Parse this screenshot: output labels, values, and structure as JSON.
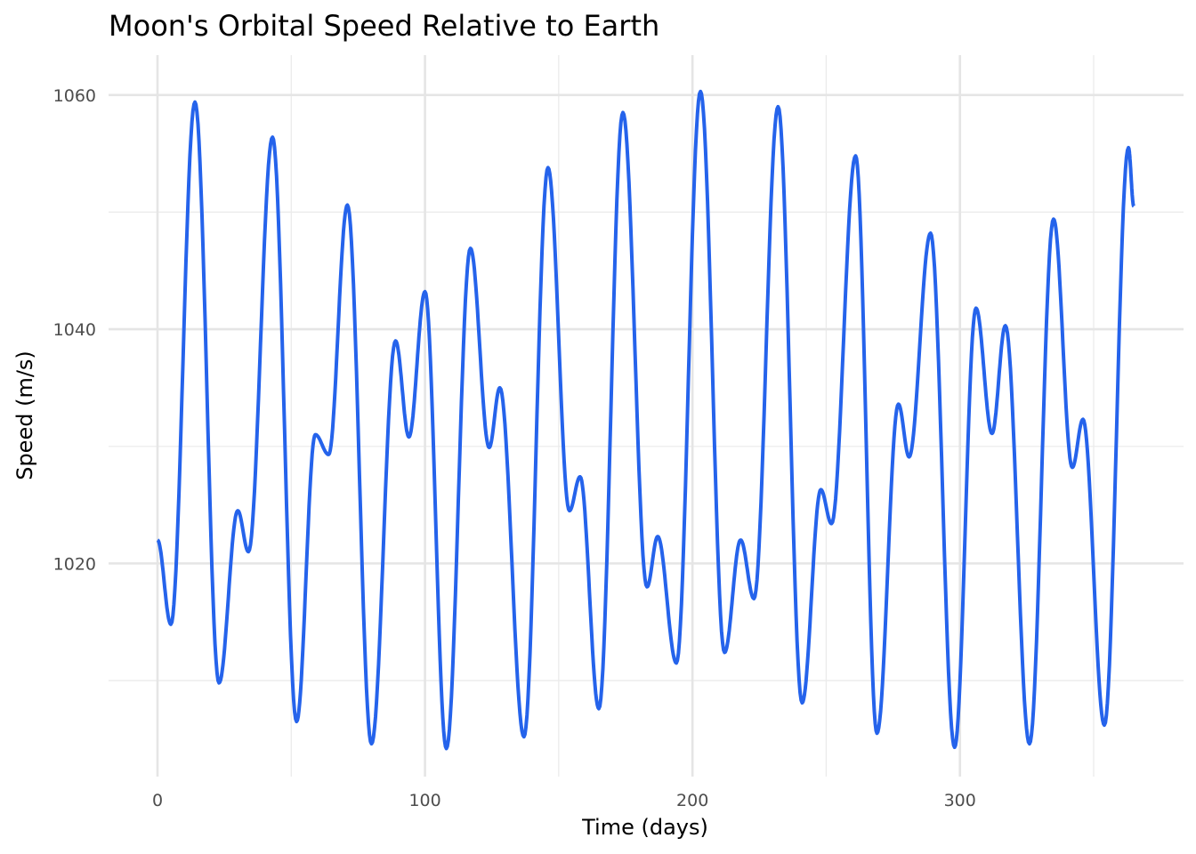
{
  "chart_data": {
    "type": "line",
    "title": "Moon's Orbital Speed Relative to Earth",
    "xlabel": "Time (days)",
    "ylabel": "Speed (m/s)",
    "xlim": [
      -18.3,
      383.6
    ],
    "ylim": [
      1001.8,
      1063.4
    ],
    "x_ticks": [
      0,
      100,
      200,
      300
    ],
    "x_tick_labels": [
      "0",
      "100",
      "200",
      "300"
    ],
    "x_minor_ticks": [
      50,
      150,
      250,
      350
    ],
    "y_ticks": [
      1020,
      1040,
      1060
    ],
    "y_tick_labels": [
      "1020",
      "1040",
      "1060"
    ],
    "y_minor_ticks": [
      1010,
      1030,
      1050
    ],
    "grid": true,
    "line_color": "#2563eb",
    "series": [
      {
        "name": "speed",
        "x": [
          0,
          5,
          14,
          23,
          30,
          34,
          43,
          52,
          59,
          64,
          71,
          80,
          89,
          94,
          100,
          108,
          117,
          124,
          128,
          137,
          146,
          154,
          158,
          165,
          174,
          183,
          187,
          194,
          203,
          212,
          218,
          223,
          232,
          241,
          248,
          252,
          261,
          269,
          277,
          281,
          289,
          298,
          306,
          312,
          317,
          326,
          335,
          342,
          346,
          354,
          363,
          365
        ],
        "y": [
          1022.0,
          1014.8,
          1059.4,
          1009.8,
          1024.5,
          1021.0,
          1056.4,
          1006.5,
          1031.0,
          1029.3,
          1050.6,
          1004.6,
          1039.0,
          1030.8,
          1043.2,
          1004.2,
          1046.9,
          1029.9,
          1035.0,
          1005.2,
          1053.8,
          1024.5,
          1027.4,
          1007.6,
          1058.5,
          1018.0,
          1022.3,
          1011.5,
          1060.3,
          1012.4,
          1022.0,
          1017.0,
          1059.0,
          1008.1,
          1026.3,
          1023.4,
          1054.8,
          1005.5,
          1033.6,
          1029.1,
          1048.2,
          1004.3,
          1041.8,
          1031.1,
          1040.3,
          1004.6,
          1049.4,
          1028.2,
          1032.3,
          1006.2,
          1055.5,
          1050.5
        ]
      }
    ]
  }
}
